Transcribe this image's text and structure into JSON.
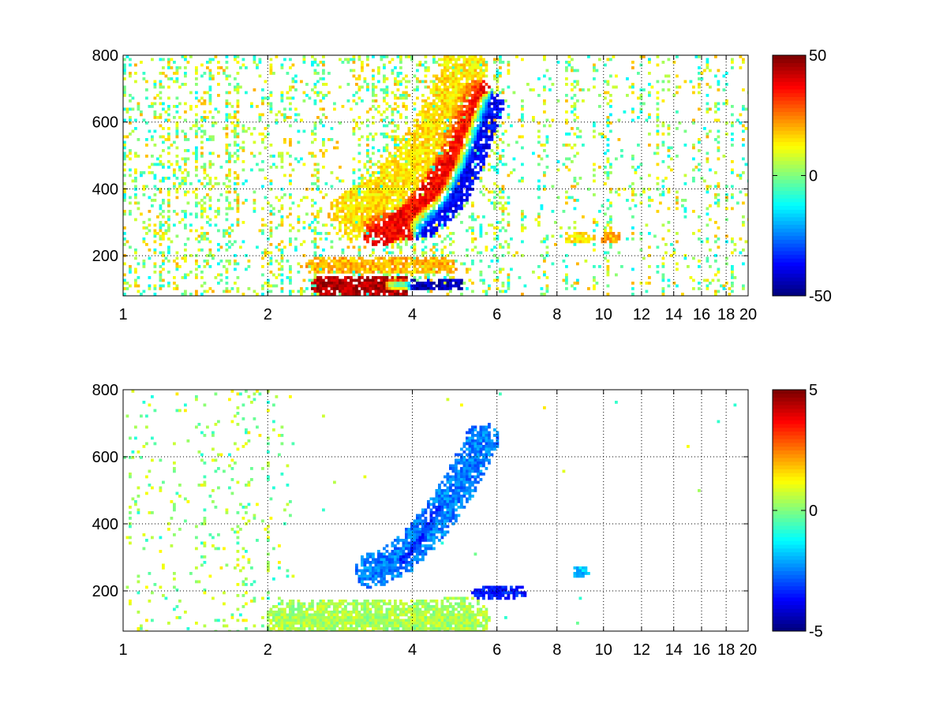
{
  "chart_data": [
    {
      "type": "heatmap",
      "title": "",
      "xlabel": "",
      "ylabel": "",
      "x_scale": "log",
      "xlim": [
        1,
        20
      ],
      "ylim": [
        80,
        800
      ],
      "xticks": [
        1,
        2,
        4,
        6,
        8,
        10,
        12,
        14,
        16,
        18,
        20
      ],
      "yticks": [
        200,
        400,
        600,
        800
      ],
      "xtick_labels": [
        "1",
        "2",
        "4",
        "6",
        "8",
        "10",
        "12",
        "14",
        "16",
        "18",
        "20"
      ],
      "ytick_labels": [
        "200",
        "400",
        "600",
        "800"
      ],
      "grid": true,
      "colormap": "jet",
      "colorbar": {
        "range": [
          -50,
          50
        ],
        "tick_labels": [
          "50",
          "0",
          "-50"
        ]
      },
      "features": [
        {
          "desc": "positive band",
          "points": [
            [
              2.6,
              110
            ],
            [
              3.0,
              110
            ],
            [
              3.5,
              110
            ],
            [
              3.8,
              105
            ]
          ],
          "value": 45,
          "width": 14
        },
        {
          "desc": "negative streak",
          "points": [
            [
              3.6,
              112
            ],
            [
              4.2,
              110
            ],
            [
              5.0,
              112
            ]
          ],
          "value": -45,
          "width": 7
        },
        {
          "desc": "positive arc",
          "points": [
            [
              3.4,
              280
            ],
            [
              3.9,
              300
            ],
            [
              4.4,
              380
            ],
            [
              4.8,
              480
            ],
            [
              5.1,
              580
            ],
            [
              5.4,
              680
            ]
          ],
          "value": 38,
          "width": 22
        },
        {
          "desc": "negative arc",
          "points": [
            [
              4.2,
              290
            ],
            [
              4.8,
              360
            ],
            [
              5.2,
              460
            ],
            [
              5.5,
              560
            ],
            [
              5.8,
              650
            ]
          ],
          "value": -38,
          "width": 18
        },
        {
          "desc": "positive patch",
          "points": [
            [
              2.5,
              170
            ],
            [
              3.5,
              175
            ],
            [
              4.8,
              170
            ]
          ],
          "value": 20,
          "width": 10
        },
        {
          "desc": "positive halo",
          "points": [
            [
              3.0,
              320
            ],
            [
              3.6,
              400
            ],
            [
              4.2,
              520
            ],
            [
              4.8,
              650
            ],
            [
              5.1,
              760
            ]
          ],
          "value": 15,
          "width": 30
        },
        {
          "desc": "positive patch",
          "points": [
            [
              8.5,
              255
            ],
            [
              9.2,
              255
            ]
          ],
          "value": 15,
          "width": 7
        },
        {
          "desc": "positive patch",
          "points": [
            [
              10.1,
              255
            ],
            [
              10.6,
              255
            ]
          ],
          "value": 20,
          "width": 7
        }
      ]
    },
    {
      "type": "heatmap",
      "title": "",
      "xlabel": "",
      "ylabel": "",
      "x_scale": "log",
      "xlim": [
        1,
        20
      ],
      "ylim": [
        80,
        800
      ],
      "xticks": [
        1,
        2,
        4,
        6,
        8,
        10,
        12,
        14,
        16,
        18,
        20
      ],
      "yticks": [
        200,
        400,
        600,
        800
      ],
      "xtick_labels": [
        "1",
        "2",
        "4",
        "6",
        "8",
        "10",
        "12",
        "14",
        "16",
        "18",
        "20"
      ],
      "ytick_labels": [
        "200",
        "400",
        "600",
        "800"
      ],
      "grid": true,
      "colormap": "jet",
      "colorbar": {
        "range": [
          -5,
          5
        ],
        "tick_labels": [
          "5",
          "0",
          "-5"
        ]
      },
      "features": [
        {
          "desc": "low band",
          "points": [
            [
              2.2,
              110
            ],
            [
              3.0,
              110
            ],
            [
              4.0,
              110
            ],
            [
              5.2,
              115
            ]
          ],
          "value": 0.4,
          "width": 28
        },
        {
          "desc": "negative arc",
          "points": [
            [
              3.3,
              260
            ],
            [
              3.8,
              300
            ],
            [
              4.3,
              380
            ],
            [
              4.8,
              470
            ],
            [
              5.2,
              560
            ],
            [
              5.6,
              650
            ]
          ],
          "value": -2.5,
          "width": 22
        },
        {
          "desc": "strong negative streak",
          "points": [
            [
              3.8,
              290
            ],
            [
              4.2,
              360
            ],
            [
              4.5,
              450
            ]
          ],
          "value": -4.5,
          "width": 6
        },
        {
          "desc": "blue spots",
          "points": [
            [
              5.5,
              195
            ],
            [
              6.7,
              195
            ]
          ],
          "value": -3.5,
          "width": 8
        },
        {
          "desc": "cyan spot",
          "points": [
            [
              8.8,
              255
            ],
            [
              9.1,
              255
            ]
          ],
          "value": -1.8,
          "width": 7
        }
      ]
    }
  ]
}
